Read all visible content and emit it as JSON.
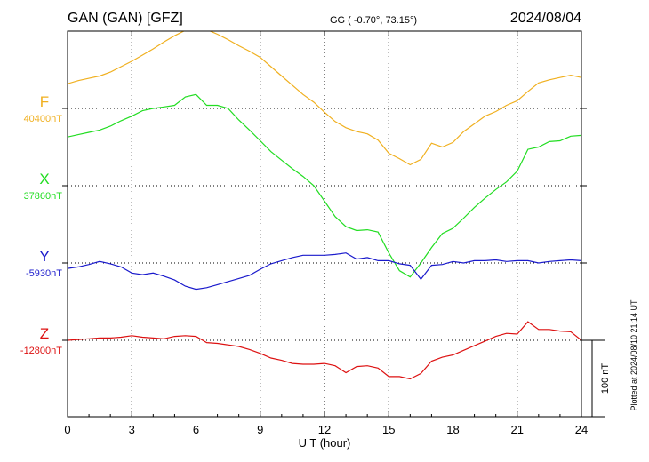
{
  "header": {
    "station": "GAN (GAN)  [GFZ]",
    "coords": "GG ( -0.70°,  73.15°)",
    "date": "2024/08/04"
  },
  "side_note": "Plotted at 2024/08/10 21:14 UT",
  "colors": {
    "F": "#f0b020",
    "X": "#22dd22",
    "Y": "#1a1acc",
    "Z": "#dd1111"
  },
  "chart_data": {
    "type": "line",
    "xlabel": "U T (hour)",
    "xlim": [
      0,
      24
    ],
    "x_ticks": [
      "0",
      "3",
      "6",
      "9",
      "12",
      "15",
      "18",
      "21",
      "24"
    ],
    "scale_bar": {
      "label": "100 nT",
      "value_nT": 100
    },
    "series": [
      {
        "name": "F",
        "baseline_label": "40400nT",
        "baseline_nT": 40400,
        "color": "#f0b020",
        "x": [
          0,
          0.5,
          1,
          1.5,
          2,
          2.5,
          3,
          3.5,
          4,
          4.5,
          5,
          5.5,
          6,
          6.5,
          7,
          7.5,
          8,
          8.5,
          9,
          9.5,
          10,
          10.5,
          11,
          11.5,
          12,
          12.5,
          13,
          13.5,
          14,
          14.5,
          15,
          15.5,
          16,
          16.5,
          17,
          17.5,
          18,
          18.5,
          19,
          19.5,
          20,
          20.5,
          21,
          21.5,
          22,
          22.5,
          23,
          23.5,
          24
        ],
        "y": [
          32,
          36,
          39,
          42,
          47,
          54,
          61,
          69,
          77,
          86,
          94,
          101,
          106,
          102,
          96,
          89,
          81,
          74,
          66,
          54,
          42,
          30,
          18,
          8,
          -5,
          -17,
          -25,
          -30,
          -33,
          -41,
          -58,
          -65,
          -73,
          -66,
          -45,
          -50,
          -44,
          -30,
          -20,
          -10,
          -4,
          4,
          10,
          22,
          33,
          37,
          40,
          43,
          40
        ]
      },
      {
        "name": "X",
        "baseline_label": "37860nT",
        "baseline_nT": 37860,
        "color": "#22dd22",
        "x": [
          0,
          0.5,
          1,
          1.5,
          2,
          2.5,
          3,
          3.5,
          4,
          4.5,
          5,
          5.5,
          6,
          6.5,
          7,
          7.5,
          8,
          8.5,
          9,
          9.5,
          10,
          10.5,
          11,
          11.5,
          12,
          12.5,
          13,
          13.5,
          14,
          14.5,
          15,
          15.5,
          16,
          16.5,
          17,
          17.5,
          18,
          18.5,
          19,
          19.5,
          20,
          20.5,
          21,
          21.5,
          22,
          22.5,
          23,
          23.5,
          24
        ],
        "y": [
          63,
          66,
          69,
          72,
          77,
          84,
          90,
          97,
          100,
          102,
          104,
          115,
          118,
          104,
          104,
          100,
          85,
          72,
          58,
          44,
          33,
          22,
          12,
          0,
          -20,
          -40,
          -53,
          -58,
          -57,
          -60,
          -87,
          -110,
          -118,
          -100,
          -80,
          -62,
          -55,
          -42,
          -28,
          -16,
          -5,
          5,
          19,
          47,
          50,
          57,
          58,
          64,
          65
        ]
      },
      {
        "name": "Y",
        "baseline_label": "-5930nT",
        "baseline_nT": -5930,
        "color": "#1a1acc",
        "x": [
          0,
          0.5,
          1,
          1.5,
          2,
          2.5,
          3,
          3.5,
          4,
          4.5,
          5,
          5.5,
          6,
          6.5,
          7,
          7.5,
          8,
          8.5,
          9,
          9.5,
          10,
          10.5,
          11,
          11.5,
          12,
          12.5,
          13,
          13.5,
          14,
          14.5,
          15,
          15.5,
          16,
          16.5,
          17,
          17.5,
          18,
          18.5,
          19,
          19.5,
          20,
          20.5,
          21,
          21.5,
          22,
          22.5,
          23,
          23.5,
          24
        ],
        "y": [
          -7,
          -5,
          -2,
          2,
          -1,
          -5,
          -13,
          -15,
          -13,
          -17,
          -22,
          -30,
          -34,
          -32,
          -28,
          -24,
          -20,
          -16,
          -8,
          -1,
          3,
          7,
          10,
          10,
          10,
          11,
          13,
          5,
          7,
          3,
          3,
          -1,
          -3,
          -21,
          -3,
          -2,
          2,
          0,
          3,
          3,
          4,
          2,
          3,
          3,
          0,
          2,
          3,
          4,
          3
        ]
      },
      {
        "name": "Z",
        "baseline_label": "-12800nT",
        "baseline_nT": -12800,
        "color": "#dd1111",
        "x": [
          0,
          0.5,
          1,
          1.5,
          2,
          2.5,
          3,
          3.5,
          4,
          4.5,
          5,
          5.5,
          6,
          6.5,
          7,
          7.5,
          8,
          8.5,
          9,
          9.5,
          10,
          10.5,
          11,
          11.5,
          12,
          12.5,
          13,
          13.5,
          14,
          14.5,
          15,
          15.5,
          16,
          16.5,
          17,
          17.5,
          18,
          18.5,
          19,
          19.5,
          20,
          20.5,
          21,
          21.5,
          22,
          22.5,
          23,
          23.5,
          24
        ],
        "y": [
          0,
          1,
          2,
          3,
          3,
          4,
          6,
          4,
          3,
          2,
          5,
          6,
          5,
          -3,
          -4,
          -6,
          -8,
          -12,
          -17,
          -23,
          -26,
          -30,
          -31,
          -31,
          -30,
          -33,
          -42,
          -34,
          -33,
          -36,
          -47,
          -47,
          -50,
          -43,
          -27,
          -22,
          -19,
          -13,
          -7,
          -1,
          5,
          9,
          8,
          24,
          14,
          14,
          12,
          11,
          0
        ]
      }
    ]
  }
}
